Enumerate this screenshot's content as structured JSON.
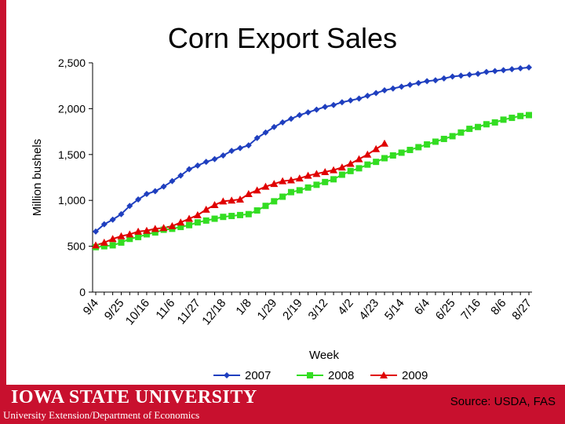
{
  "slide": {
    "title": "Corn Export Sales",
    "institution": "Iowa State University",
    "department": "University Extension/Department of Economics",
    "source": "Source: USDA, FAS"
  },
  "colors": {
    "brand_red": "#c8102e",
    "s2007": "#1f3fbf",
    "s2008": "#33dd22",
    "s2009": "#e00000"
  },
  "chart_data": {
    "type": "line",
    "title": "Corn Export Sales",
    "xlabel": "Week",
    "ylabel": "Million bushels",
    "ylim": [
      0,
      2500
    ],
    "yticks": [
      0,
      500,
      1000,
      1500,
      2000,
      2500
    ],
    "ytick_labels": [
      "0",
      "500",
      "1,000",
      "1,500",
      "2,000",
      "2,500"
    ],
    "xtick_labels": [
      "9/4",
      "9/25",
      "10/16",
      "11/6",
      "11/27",
      "12/18",
      "1/8",
      "1/29",
      "2/19",
      "3/12",
      "4/2",
      "4/23",
      "5/14",
      "6/4",
      "6/25",
      "7/16",
      "8/6",
      "8/27"
    ],
    "weeks": 52,
    "legend_position": "bottom",
    "series": [
      {
        "name": "2007",
        "marker": "diamond",
        "values": [
          660,
          740,
          790,
          850,
          940,
          1010,
          1070,
          1100,
          1150,
          1210,
          1270,
          1340,
          1380,
          1420,
          1450,
          1490,
          1540,
          1570,
          1600,
          1680,
          1740,
          1800,
          1850,
          1890,
          1930,
          1960,
          1990,
          2020,
          2040,
          2070,
          2090,
          2110,
          2140,
          2170,
          2200,
          2220,
          2240,
          2260,
          2280,
          2300,
          2310,
          2330,
          2350,
          2360,
          2370,
          2380,
          2400,
          2410,
          2420,
          2430,
          2440,
          2450
        ]
      },
      {
        "name": "2008",
        "marker": "square",
        "values": [
          490,
          500,
          510,
          540,
          580,
          600,
          630,
          650,
          680,
          690,
          710,
          730,
          760,
          780,
          800,
          820,
          830,
          840,
          850,
          890,
          940,
          990,
          1040,
          1090,
          1110,
          1140,
          1170,
          1200,
          1230,
          1280,
          1320,
          1350,
          1390,
          1420,
          1460,
          1490,
          1520,
          1550,
          1580,
          1610,
          1640,
          1670,
          1700,
          1740,
          1780,
          1800,
          1830,
          1850,
          1880,
          1900,
          1920,
          1930
        ]
      },
      {
        "name": "2009",
        "marker": "triangle",
        "values": [
          510,
          540,
          580,
          610,
          630,
          660,
          670,
          690,
          700,
          720,
          760,
          800,
          840,
          900,
          950,
          990,
          1000,
          1010,
          1070,
          1110,
          1150,
          1180,
          1210,
          1220,
          1240,
          1270,
          1290,
          1310,
          1330,
          1360,
          1400,
          1450,
          1500,
          1560,
          1620
        ]
      }
    ]
  }
}
